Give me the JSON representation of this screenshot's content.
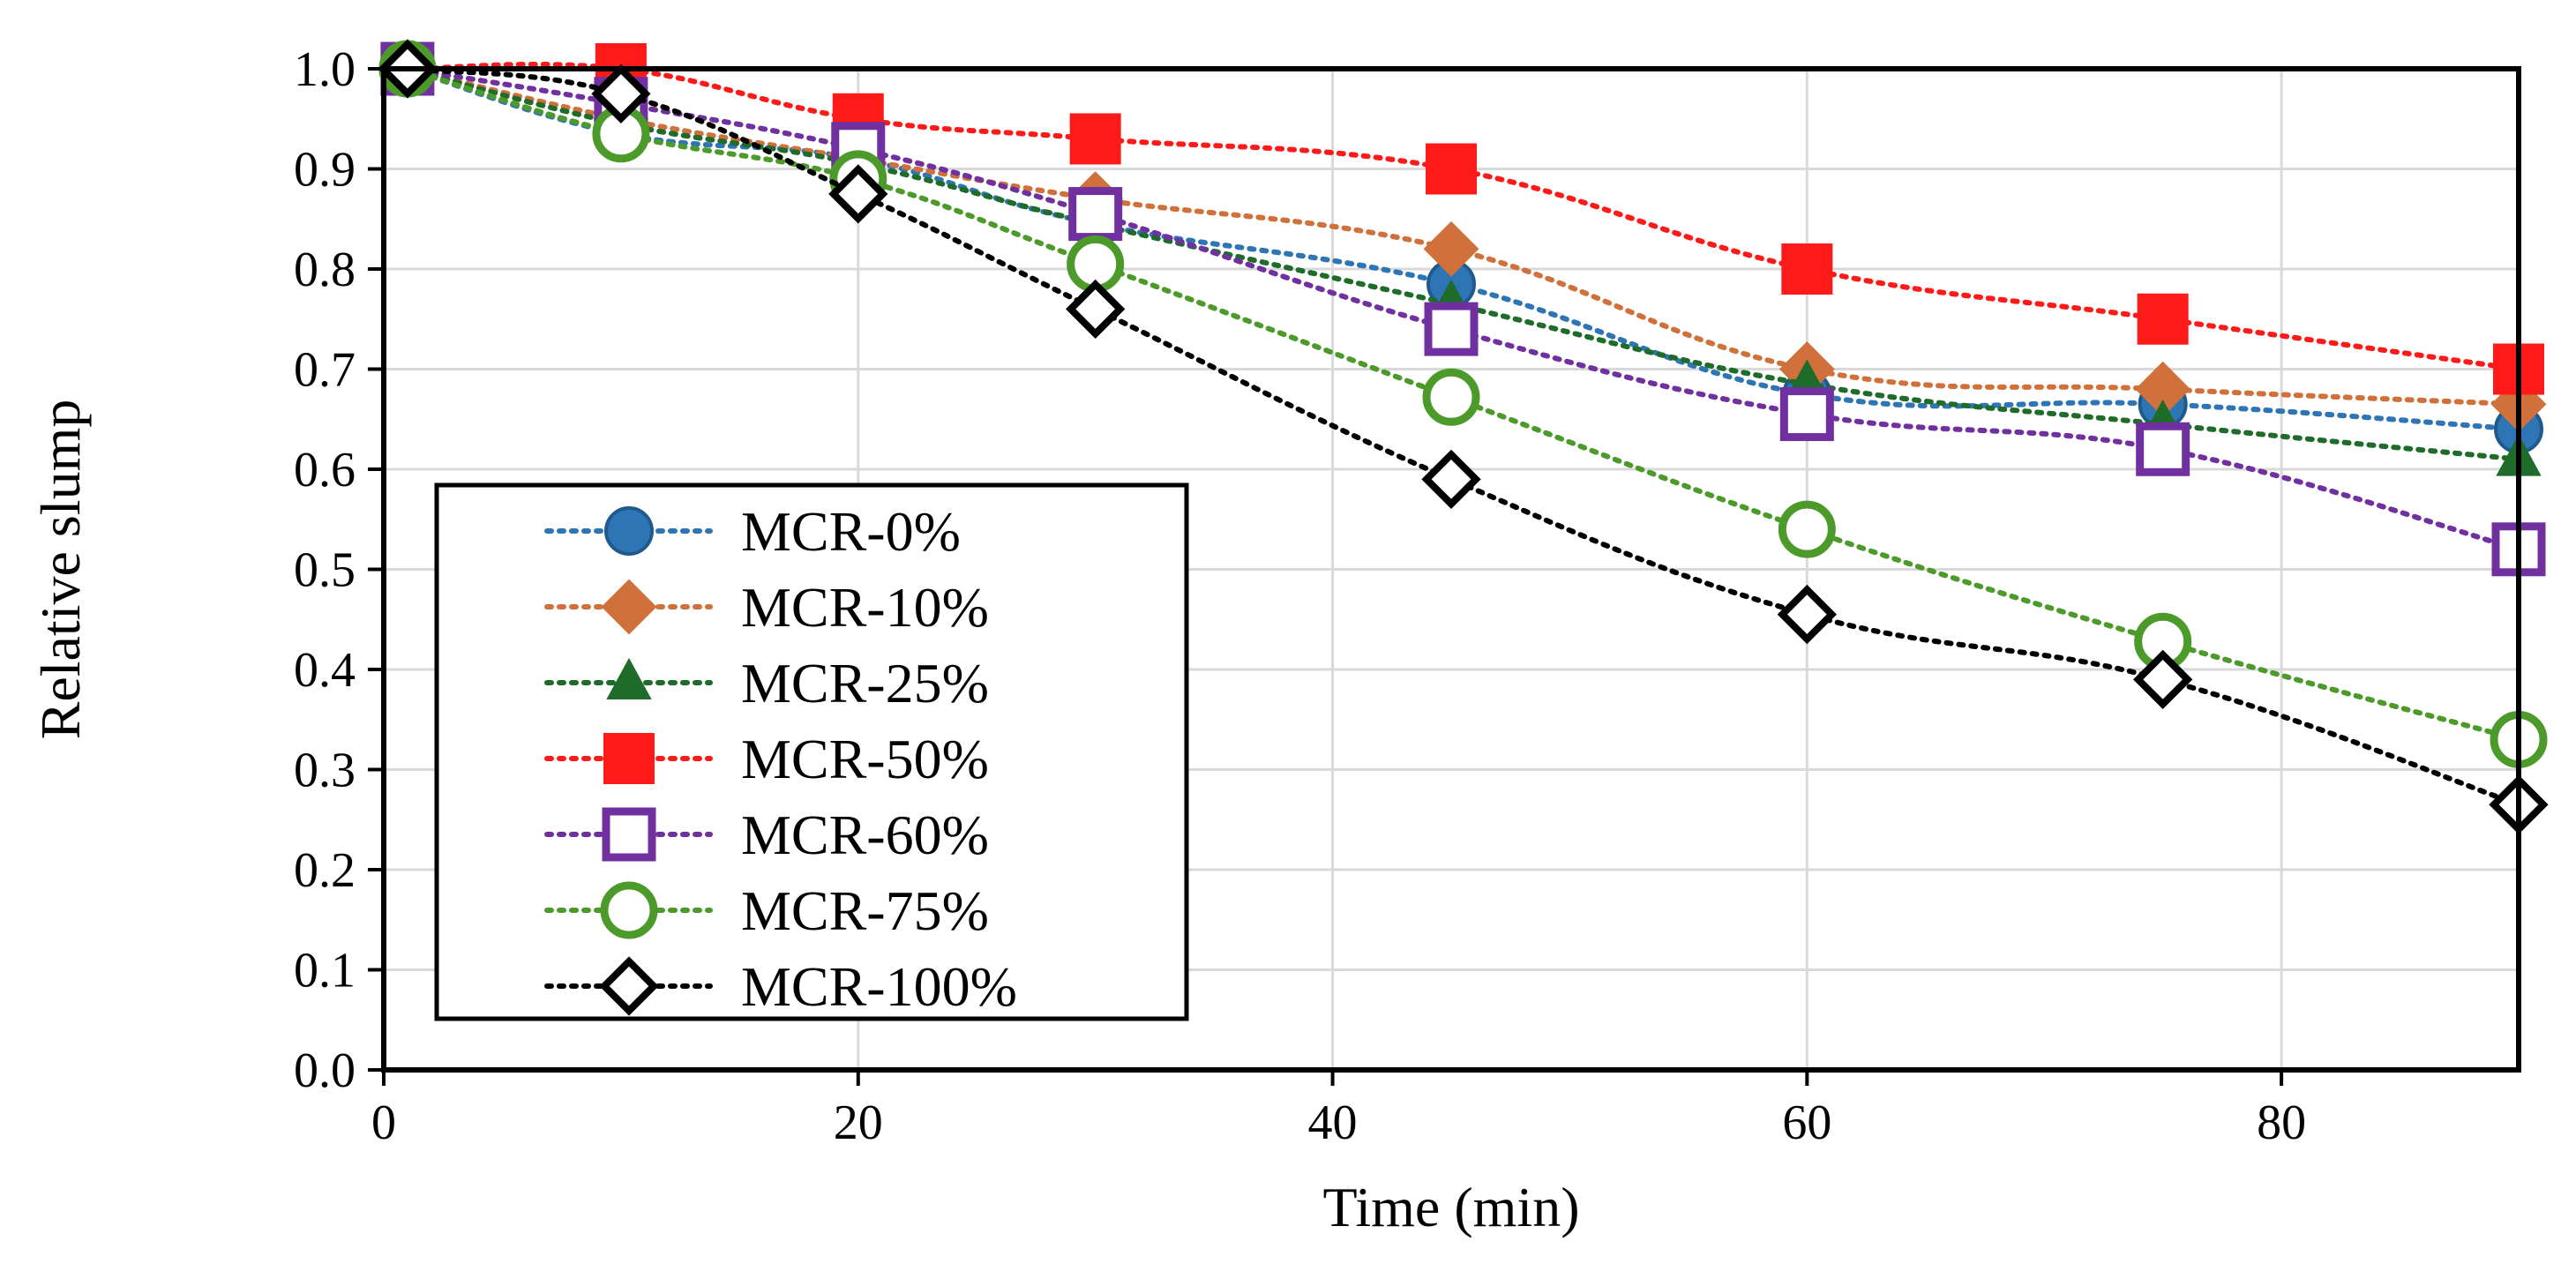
{
  "chart_data": {
    "type": "line",
    "title": "",
    "xlabel": "Time (min)",
    "ylabel": "Relative slump",
    "xlim": [
      0,
      90
    ],
    "ylim": [
      0.0,
      1.0
    ],
    "xticks": [
      0,
      20,
      40,
      60,
      80
    ],
    "yticks": [
      0.0,
      0.1,
      0.2,
      0.3,
      0.4,
      0.5,
      0.6,
      0.7,
      0.8,
      0.9,
      1.0
    ],
    "xtick_labels": [
      "0",
      "20",
      "40",
      "60",
      "80"
    ],
    "ytick_labels": [
      "0.0",
      "0.1",
      "0.2",
      "0.3",
      "0.4",
      "0.5",
      "0.6",
      "0.7",
      "0.8",
      "0.9",
      "1.0"
    ],
    "grid": true,
    "legend_position": "center-left",
    "series": [
      {
        "name": "MCR-0%",
        "color": "#2E75B6",
        "marker": "circle-filled",
        "x": [
          1,
          10,
          20,
          30,
          45,
          60,
          75,
          90
        ],
        "y": [
          1.0,
          0.935,
          0.91,
          0.845,
          0.785,
          0.675,
          0.665,
          0.64
        ]
      },
      {
        "name": "MCR-10%",
        "color": "#D0703A",
        "marker": "diamond-filled",
        "x": [
          1,
          10,
          20,
          30,
          45,
          60,
          75,
          90
        ],
        "y": [
          1.0,
          0.95,
          0.91,
          0.87,
          0.82,
          0.7,
          0.68,
          0.665
        ]
      },
      {
        "name": "MCR-25%",
        "color": "#1E6B2A",
        "marker": "triangle-filled",
        "x": [
          1,
          10,
          20,
          30,
          45,
          60,
          75,
          90
        ],
        "y": [
          1.0,
          0.945,
          0.905,
          0.845,
          0.765,
          0.685,
          0.645,
          0.61
        ]
      },
      {
        "name": "MCR-50%",
        "color": "#FF1A1A",
        "marker": "square-filled",
        "x": [
          1,
          10,
          20,
          30,
          45,
          60,
          75,
          90
        ],
        "y": [
          1.0,
          1.0,
          0.95,
          0.93,
          0.9,
          0.8,
          0.75,
          0.7
        ]
      },
      {
        "name": "MCR-60%",
        "color": "#7030A0",
        "marker": "square-open",
        "x": [
          1,
          10,
          20,
          30,
          45,
          60,
          75,
          90
        ],
        "y": [
          1.0,
          0.965,
          0.92,
          0.855,
          0.74,
          0.655,
          0.62,
          0.52
        ]
      },
      {
        "name": "MCR-75%",
        "color": "#4C9A2A",
        "marker": "circle-open",
        "x": [
          1,
          10,
          20,
          30,
          45,
          60,
          75,
          90
        ],
        "y": [
          1.0,
          0.935,
          0.89,
          0.805,
          0.672,
          0.54,
          0.428,
          0.33
        ]
      },
      {
        "name": "MCR-100%",
        "color": "#000000",
        "marker": "diamond-open",
        "x": [
          1,
          10,
          20,
          30,
          45,
          60,
          75,
          90
        ],
        "y": [
          1.0,
          0.975,
          0.875,
          0.76,
          0.59,
          0.455,
          0.39,
          0.265
        ]
      }
    ]
  }
}
